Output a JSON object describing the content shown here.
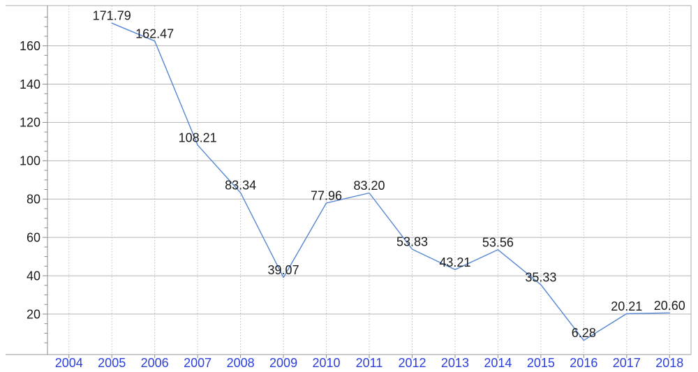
{
  "chart_data": {
    "type": "line",
    "title": "",
    "xlabel": "",
    "ylabel": "",
    "categories": [
      "2004",
      "2005",
      "2006",
      "2007",
      "2008",
      "2009",
      "2010",
      "2011",
      "2012",
      "2013",
      "2014",
      "2015",
      "2016",
      "2017",
      "2018"
    ],
    "series": [
      {
        "name": "value",
        "values": [
          null,
          171.79,
          162.47,
          108.21,
          83.34,
          39.07,
          77.96,
          83.2,
          53.83,
          43.21,
          53.56,
          35.33,
          6.28,
          20.21,
          20.6
        ],
        "point_labels": [
          "",
          "171.79",
          "162.47",
          "108.21",
          "83.34",
          "39.07",
          "77.96",
          "83.20",
          "53.83",
          "43.21",
          "53.56",
          "35.33",
          "6.28",
          "20.21",
          "20.60"
        ],
        "color": "#5587D2"
      }
    ],
    "ylim": [
      0,
      180
    ],
    "yticks": [
      20,
      40,
      60,
      80,
      100,
      120,
      140,
      160
    ],
    "y_minor_tick_step": 5,
    "grid": {
      "horizontal": "solid",
      "vertical": "dotted"
    },
    "legend_position": "none",
    "colors": {
      "x_tick_label": "#2C40DA",
      "y_tick_label": "#1A1A1A",
      "value_label": "#1A1A1A",
      "axis": "#8A8A8A",
      "frame": "#ABABAB",
      "bottom_axis": "#9A9A9A",
      "grid_major": "#B5B5B5",
      "grid_vertical": "#BDBDBD",
      "background": "#FFFFFF"
    }
  }
}
